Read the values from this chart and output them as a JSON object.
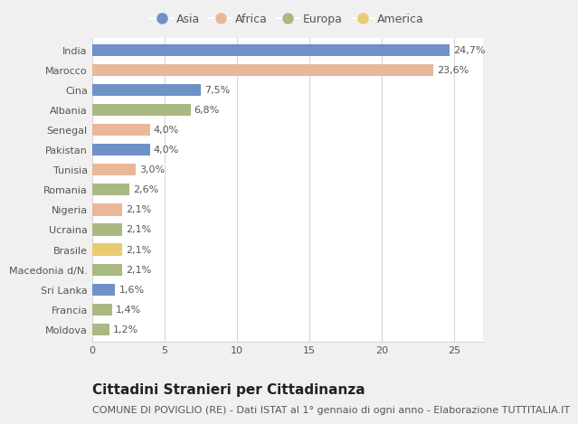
{
  "categories": [
    "India",
    "Marocco",
    "Cina",
    "Albania",
    "Senegal",
    "Pakistan",
    "Tunisia",
    "Romania",
    "Nigeria",
    "Ucraina",
    "Brasile",
    "Macedonia d/N.",
    "Sri Lanka",
    "Francia",
    "Moldova"
  ],
  "values": [
    24.7,
    23.6,
    7.5,
    6.8,
    4.0,
    4.0,
    3.0,
    2.6,
    2.1,
    2.1,
    2.1,
    2.1,
    1.6,
    1.4,
    1.2
  ],
  "labels": [
    "24,7%",
    "23,6%",
    "7,5%",
    "6,8%",
    "4,0%",
    "4,0%",
    "3,0%",
    "2,6%",
    "2,1%",
    "2,1%",
    "2,1%",
    "2,1%",
    "1,6%",
    "1,4%",
    "1,2%"
  ],
  "continents": [
    "Asia",
    "Africa",
    "Asia",
    "Europa",
    "Africa",
    "Asia",
    "Africa",
    "Europa",
    "Africa",
    "Europa",
    "America",
    "Europa",
    "Asia",
    "Europa",
    "Europa"
  ],
  "colors": {
    "Asia": "#7090c8",
    "Africa": "#e8b898",
    "Europa": "#aab882",
    "America": "#e8cc70"
  },
  "legend_order": [
    "Asia",
    "Africa",
    "Europa",
    "America"
  ],
  "xlim": [
    0,
    27
  ],
  "xticks": [
    0,
    5,
    10,
    15,
    20,
    25
  ],
  "title": "Cittadini Stranieri per Cittadinanza",
  "subtitle": "COMUNE DI POVIGLIO (RE) - Dati ISTAT al 1° gennaio di ogni anno - Elaborazione TUTTITALIA.IT",
  "background_color": "#f0f0f0",
  "bar_background": "#ffffff",
  "grid_color": "#d8d8d8",
  "title_fontsize": 11,
  "subtitle_fontsize": 8,
  "label_fontsize": 8,
  "tick_fontsize": 8,
  "bar_height": 0.6
}
